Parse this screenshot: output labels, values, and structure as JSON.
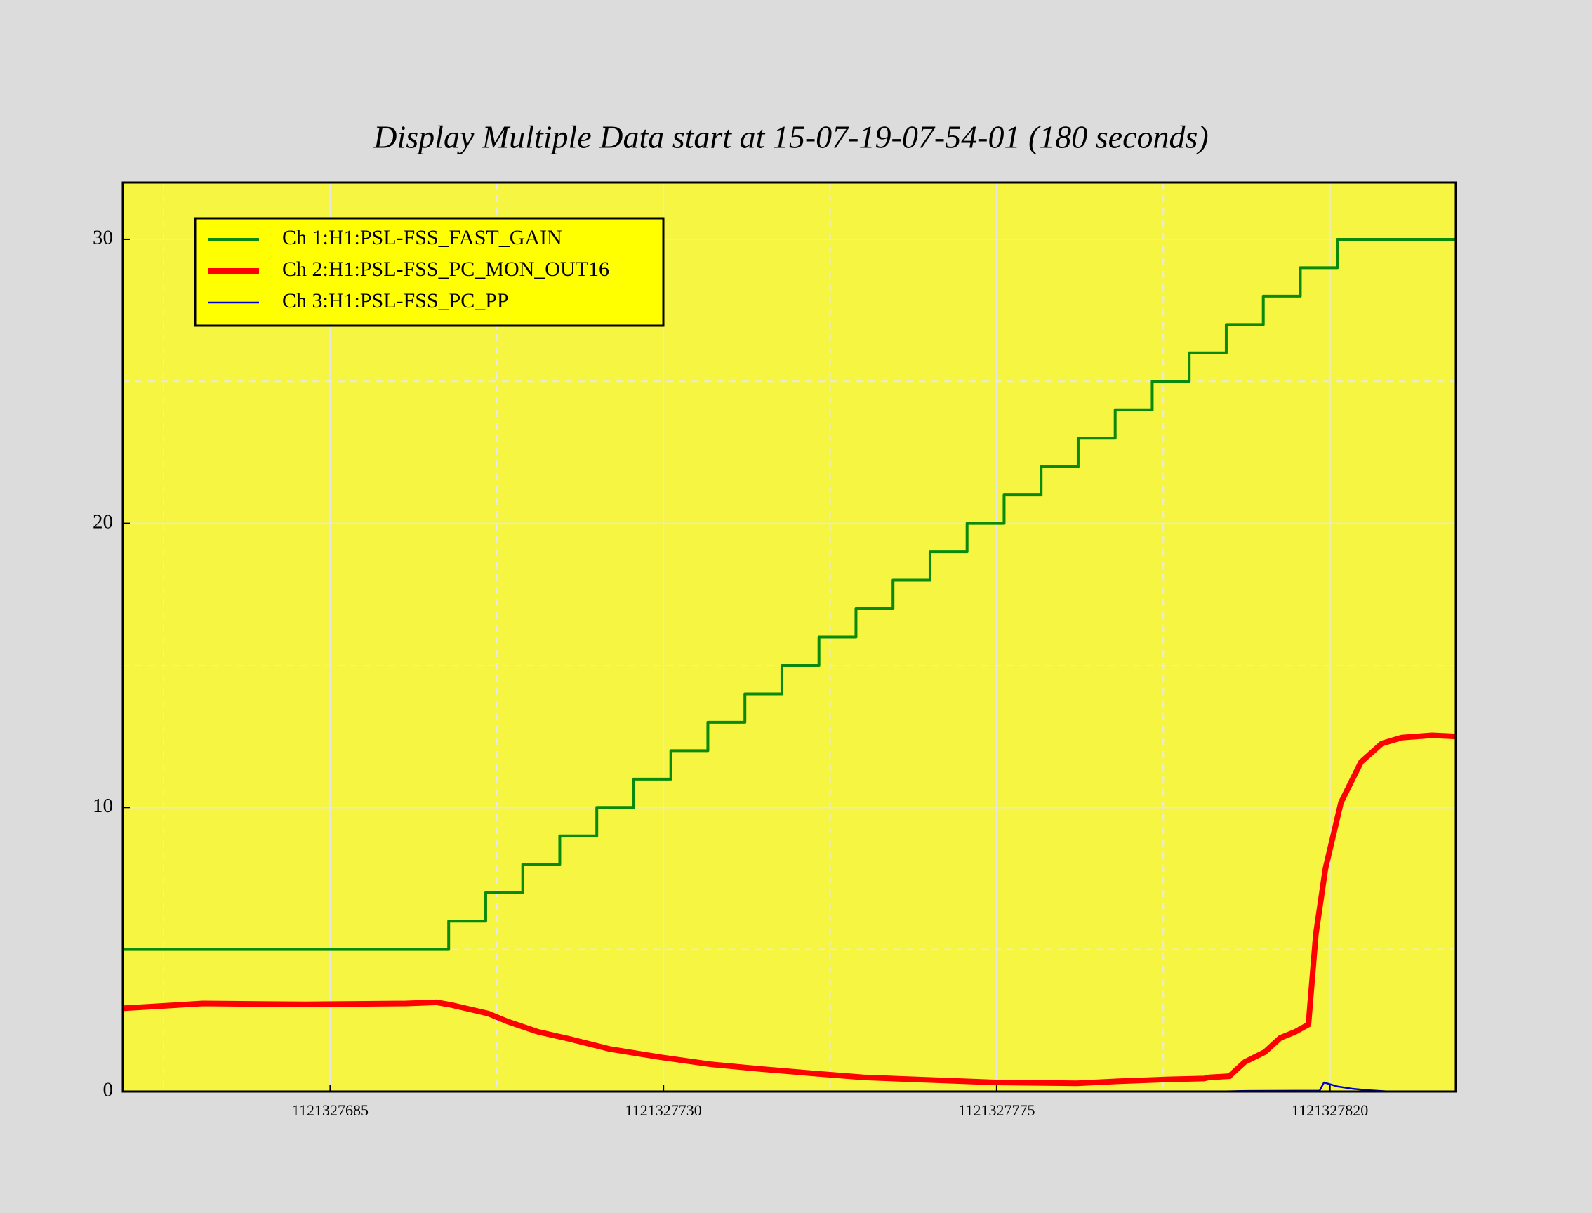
{
  "chart_data": {
    "type": "line",
    "title": "Display Multiple Data start at 15-07-19-07-54-01 (180 seconds)",
    "xlim": [
      1121327657,
      1121327837
    ],
    "xticks": [
      1121327685,
      1121327730,
      1121327775,
      1121327820
    ],
    "ylim": [
      0,
      32
    ],
    "yticks": [
      0,
      10,
      20,
      30
    ],
    "grid": true,
    "legend": "upper left",
    "series": [
      {
        "name": "Ch 1:H1:PSL-FSS_FAST_GAIN",
        "color": "#0a8a0a",
        "x": [
          1121327657,
          1121327701,
          1121327701,
          1121327706,
          1121327706,
          1121327711,
          1121327711,
          1121327716,
          1121327716,
          1121327721,
          1121327721,
          1121327726,
          1121327726,
          1121327731,
          1121327731,
          1121327736,
          1121327736,
          1121327741,
          1121327741,
          1121327746,
          1121327746,
          1121327751,
          1121327751,
          1121327756,
          1121327756,
          1121327761,
          1121327761,
          1121327766,
          1121327766,
          1121327771,
          1121327771,
          1121327776,
          1121327776,
          1121327781,
          1121327781,
          1121327786,
          1121327786,
          1121327791,
          1121327791,
          1121327796,
          1121327796,
          1121327801,
          1121327801,
          1121327806,
          1121327806,
          1121327811,
          1121327811,
          1121327816,
          1121327816,
          1121327821,
          1121327821,
          1121327837
        ],
        "values": [
          5,
          5,
          6,
          6,
          7,
          7,
          8,
          8,
          9,
          9,
          10,
          10,
          11,
          11,
          12,
          12,
          13,
          13,
          14,
          14,
          15,
          15,
          16,
          16,
          17,
          17,
          18,
          18,
          19,
          19,
          20,
          20,
          21,
          21,
          22,
          22,
          23,
          23,
          24,
          24,
          25,
          25,
          26,
          26,
          27,
          27,
          28,
          28,
          29,
          29,
          30,
          30
        ]
      },
      {
        "name": "Ch 2:H1:PSL-FSS_PC_MON_OUT16",
        "color": "#ff0000",
        "x": [
          1121327657,
          1121327667.8,
          1121327681.6,
          1121327695.3,
          1121327699.4,
          1121327701.5,
          1121327706.3,
          1121327709,
          1121327713.1,
          1121327717.2,
          1121327722.7,
          1121327729.6,
          1121327736.4,
          1121327743.3,
          1121327750.2,
          1121327757,
          1121327763.9,
          1121327774.8,
          1121327785.8,
          1121327791.3,
          1121327798.2,
          1121327803,
          1121327803.7,
          1121327806.4,
          1121327808.5,
          1121327811.2,
          1121327813.3,
          1121327815.3,
          1121327817.1,
          1121327818.1,
          1121327819.4,
          1121327821.5,
          1121327824.2,
          1121327827,
          1121327829.7,
          1121327833.8,
          1121327837
        ],
        "values": [
          2.93,
          3.1,
          3.07,
          3.1,
          3.14,
          3.04,
          2.75,
          2.46,
          2.1,
          1.86,
          1.5,
          1.21,
          0.96,
          0.79,
          0.64,
          0.5,
          0.43,
          0.32,
          0.29,
          0.36,
          0.43,
          0.46,
          0.5,
          0.54,
          1.04,
          1.39,
          1.89,
          2.1,
          2.36,
          5.54,
          7.86,
          10.18,
          11.6,
          12.25,
          12.46,
          12.54,
          12.5
        ]
      },
      {
        "name": "Ch 3:H1:PSL-FSS_PC_PP",
        "color": "#0000cc",
        "x": [
          1121327805,
          1121327808,
          1121327818.6,
          1121327819.2,
          1121327821,
          1121327823,
          1121327825,
          1121327828
        ],
        "values": [
          0,
          0.02,
          0.03,
          0.32,
          0.18,
          0.1,
          0.05,
          0
        ]
      }
    ]
  }
}
